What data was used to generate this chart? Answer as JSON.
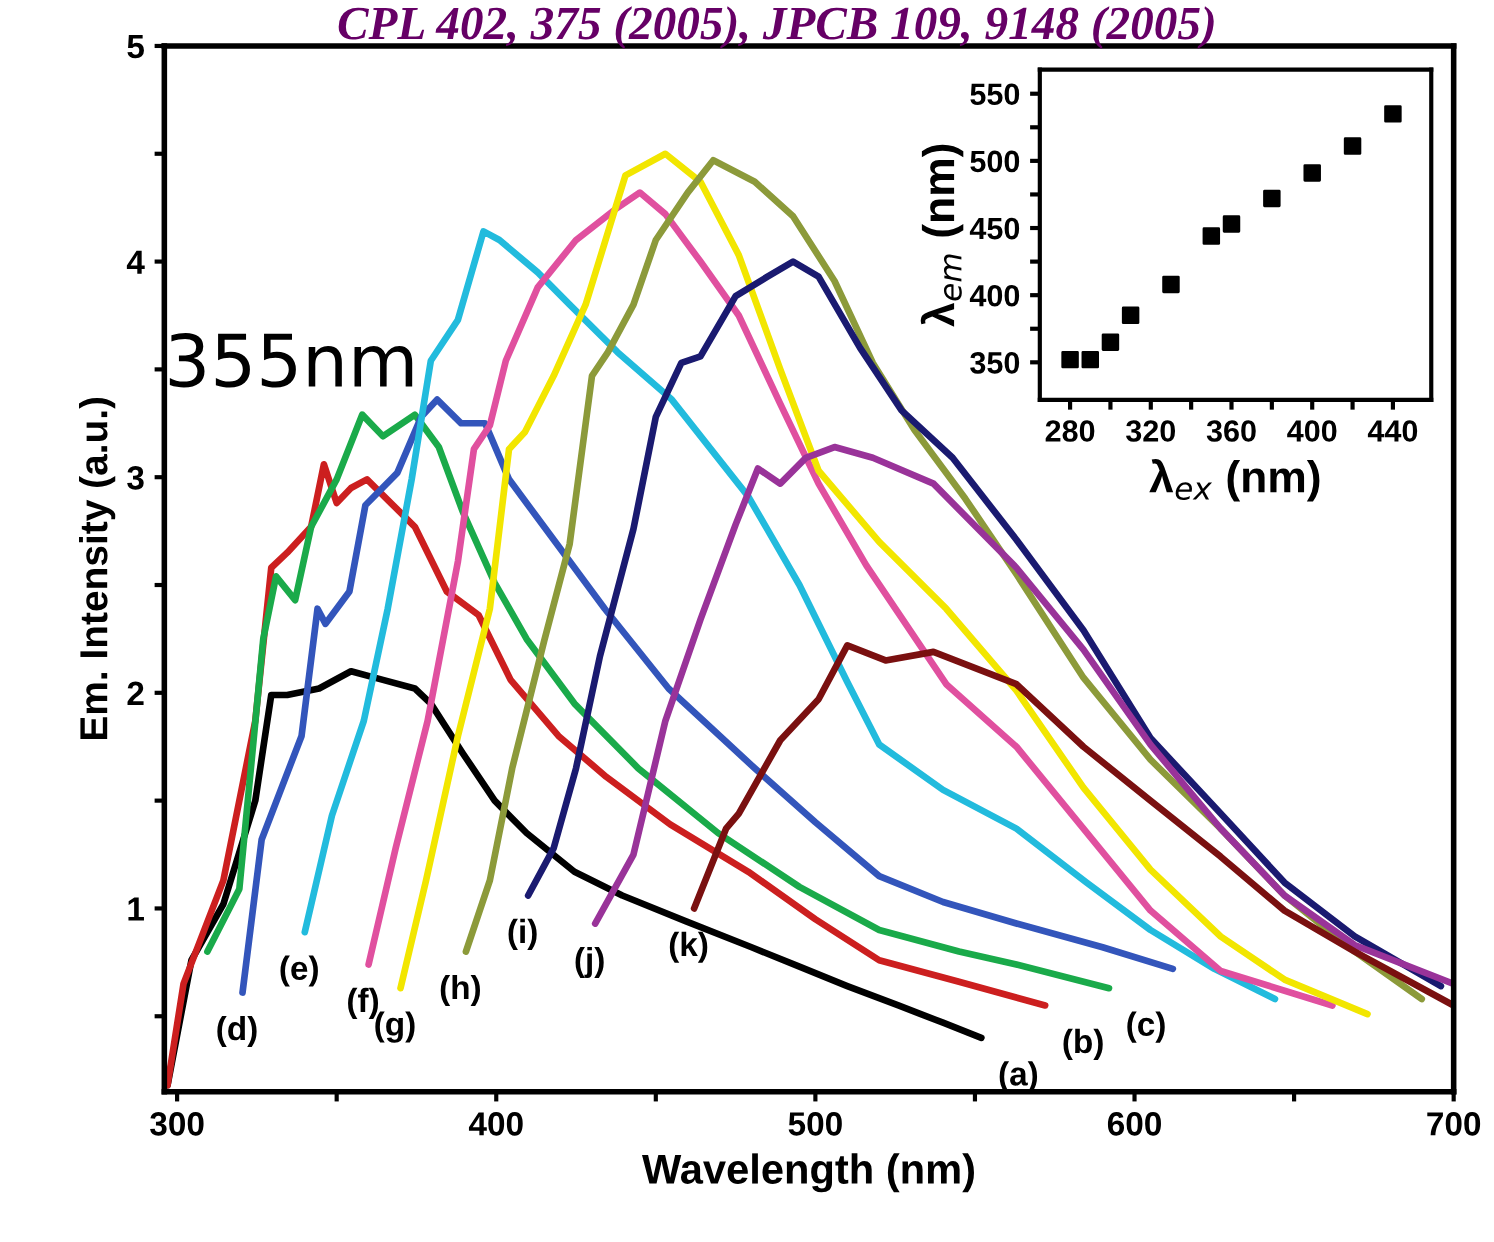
{
  "chart_data": [
    {
      "type": "line",
      "title": "CPL 402, 375 (2005), JPCB 109, 9148 (2005)",
      "xlabel": "Wavelength (nm)",
      "ylabel": "Em. Intensity (a.u.)",
      "annotations": [
        "355nm"
      ],
      "xlim": [
        296,
        700
      ],
      "ylim": [
        0.15,
        5
      ],
      "xticks": [
        300,
        {
          "value": 350,
          "label": null
        },
        400,
        {
          "value": 450,
          "label": null
        },
        500,
        {
          "value": 550,
          "label": null
        },
        600,
        {
          "value": 650,
          "label": null
        },
        700
      ],
      "yticks": [
        {
          "value": 0.5,
          "label": null
        },
        1,
        {
          "value": 1.5,
          "label": null
        },
        2,
        {
          "value": 2.5,
          "label": null
        },
        3,
        {
          "value": 3.5,
          "label": null
        },
        4,
        {
          "value": 4.5,
          "label": null
        },
        5
      ],
      "grid": false,
      "legend": false,
      "marker": "none",
      "line_style": "solid",
      "series": [
        {
          "name": "(a)",
          "color": "#000000",
          "x": [
            297,
            304.5,
            314.5,
            324.5,
            329.5,
            334.5,
            344.5,
            354.5,
            364.5,
            374.5,
            379.5,
            389.5,
            399.5,
            409.5,
            424.5,
            439.5,
            459.5,
            480,
            495,
            510,
            526,
            540,
            552
          ],
          "values": [
            0.18,
            0.76,
            1.02,
            1.5,
            1.99,
            1.99,
            2.02,
            2.1,
            2.06,
            2.02,
            1.95,
            1.72,
            1.5,
            1.35,
            1.17,
            1.06,
            0.94,
            0.82,
            0.73,
            0.64,
            0.55,
            0.47,
            0.4
          ]
        },
        {
          "name": "(b)",
          "color": "#cc1f1f",
          "x": [
            297,
            302,
            314.5,
            324.5,
            329.5,
            334.5,
            342,
            346,
            350,
            354.5,
            359.5,
            367,
            374.5,
            384.5,
            394.5,
            404.5,
            419.5,
            434.5,
            454.5,
            479,
            500,
            520,
            545,
            572
          ],
          "values": [
            0.18,
            0.65,
            1.13,
            1.87,
            2.58,
            2.65,
            2.77,
            3.06,
            2.88,
            2.95,
            2.99,
            2.88,
            2.77,
            2.47,
            2.36,
            2.06,
            1.8,
            1.61,
            1.39,
            1.17,
            0.95,
            0.76,
            0.66,
            0.55
          ]
        },
        {
          "name": "(c)",
          "color": "#1aaa4a",
          "x": [
            309.5,
            319.5,
            327,
            331,
            337,
            342,
            350,
            358,
            364.5,
            374.5,
            382,
            389.5,
            399.5,
            409.5,
            424.5,
            444.5,
            469.5,
            495,
            520,
            545,
            563,
            592
          ],
          "values": [
            0.8,
            1.09,
            2.25,
            2.54,
            2.43,
            2.77,
            2.99,
            3.29,
            3.19,
            3.29,
            3.14,
            2.84,
            2.51,
            2.25,
            1.95,
            1.65,
            1.35,
            1.1,
            0.9,
            0.8,
            0.74,
            0.63
          ]
        },
        {
          "name": "(d)",
          "color": "#3355bb",
          "x": [
            320.5,
            326.5,
            339,
            344,
            346.5,
            354,
            359,
            369,
            376.5,
            381.5,
            389,
            396.5,
            404,
            419,
            434,
            454,
            481,
            500,
            520,
            540,
            563,
            590,
            612
          ],
          "values": [
            0.61,
            1.32,
            1.8,
            2.39,
            2.32,
            2.47,
            2.87,
            3.02,
            3.28,
            3.36,
            3.25,
            3.25,
            2.99,
            2.69,
            2.39,
            2.02,
            1.65,
            1.4,
            1.15,
            1.03,
            0.93,
            0.82,
            0.72
          ]
        },
        {
          "name": "(e)",
          "color": "#22bbdd",
          "x": [
            340,
            348.5,
            358.5,
            366,
            373.5,
            379.5,
            388,
            396,
            401,
            413,
            423,
            438,
            455,
            479,
            495,
            510,
            520,
            540,
            563,
            585,
            605,
            625,
            644
          ],
          "values": [
            0.89,
            1.43,
            1.87,
            2.39,
            2.99,
            3.54,
            3.73,
            4.14,
            4.1,
            3.95,
            3.8,
            3.58,
            3.36,
            2.91,
            2.5,
            2.05,
            1.76,
            1.55,
            1.37,
            1.12,
            0.9,
            0.72,
            0.58
          ]
        },
        {
          "name": "(f)",
          "color": "#e0509f",
          "x": [
            360,
            368.5,
            378.5,
            388,
            393,
            398,
            403,
            413,
            425,
            438,
            445,
            453,
            464,
            476,
            489,
            501,
            516,
            541,
            563,
            584,
            605,
            627,
            662
          ],
          "values": [
            0.74,
            1.28,
            1.87,
            2.61,
            3.13,
            3.24,
            3.54,
            3.88,
            4.1,
            4.25,
            4.32,
            4.22,
            4.0,
            3.75,
            3.34,
            2.97,
            2.59,
            2.04,
            1.75,
            1.37,
            0.99,
            0.71,
            0.55
          ]
        },
        {
          "name": "(g)",
          "color": "#f2e600",
          "x": [
            370,
            378,
            388,
            398,
            404,
            409,
            418,
            428,
            440.5,
            453,
            464,
            476,
            489,
            501,
            520,
            541,
            563,
            584,
            605,
            627,
            647,
            673
          ],
          "values": [
            0.63,
            1.13,
            1.8,
            2.39,
            3.13,
            3.21,
            3.47,
            3.8,
            4.4,
            4.5,
            4.37,
            4.03,
            3.5,
            3.03,
            2.7,
            2.39,
            2.01,
            1.56,
            1.18,
            0.87,
            0.67,
            0.51
          ]
        },
        {
          "name": "(h)",
          "color": "#8c9a3a",
          "x": [
            390.5,
            398,
            405,
            415,
            423,
            430,
            435,
            443,
            450,
            460,
            468,
            481,
            493,
            506,
            518,
            531,
            547,
            563,
            584,
            605,
            627,
            647,
            669,
            690
          ],
          "values": [
            0.8,
            1.13,
            1.65,
            2.24,
            2.69,
            3.47,
            3.58,
            3.8,
            4.1,
            4.32,
            4.47,
            4.37,
            4.21,
            3.91,
            3.53,
            3.22,
            2.9,
            2.55,
            2.07,
            1.69,
            1.37,
            1.06,
            0.8,
            0.58
          ]
        },
        {
          "name": "(i)",
          "color": "#1a1a70",
          "x": [
            410,
            418,
            425,
            432.5,
            443,
            450,
            458,
            464,
            475,
            485,
            493,
            501,
            514,
            527,
            543,
            563,
            584,
            605,
            627,
            647,
            669,
            696
          ],
          "values": [
            1.06,
            1.28,
            1.65,
            2.17,
            2.76,
            3.28,
            3.53,
            3.56,
            3.84,
            3.93,
            4.0,
            3.93,
            3.6,
            3.31,
            3.09,
            2.71,
            2.29,
            1.79,
            1.44,
            1.12,
            0.87,
            0.64
          ]
        },
        {
          "name": "(j)",
          "color": "#993399",
          "x": [
            431,
            443,
            453,
            464,
            475,
            482,
            489,
            497,
            506,
            518,
            537,
            563,
            584,
            605,
            627,
            647,
            669,
            700
          ],
          "values": [
            0.93,
            1.25,
            1.87,
            2.34,
            2.78,
            3.04,
            2.97,
            3.09,
            3.14,
            3.09,
            2.97,
            2.58,
            2.2,
            1.76,
            1.37,
            1.06,
            0.83,
            0.65
          ]
        },
        {
          "name": "(k)",
          "color": "#7a1010",
          "x": [
            462,
            472,
            476,
            489,
            501,
            510,
            522,
            537,
            563,
            584,
            605,
            627,
            647,
            669,
            700
          ],
          "values": [
            1.0,
            1.37,
            1.44,
            1.78,
            1.97,
            2.22,
            2.15,
            2.19,
            2.04,
            1.75,
            1.5,
            1.24,
            0.99,
            0.8,
            0.55
          ]
        }
      ]
    },
    {
      "type": "scatter",
      "xlabel": "λ$_{ex}$ (nm)",
      "ylabel": "λ$_{em}$ (nm)",
      "xlim": [
        265,
        459
      ],
      "ylim": [
        322,
        568
      ],
      "xticks": [
        280,
        {
          "value": 300,
          "label": null
        },
        320,
        {
          "value": 340,
          "label": null
        },
        360,
        {
          "value": 380,
          "label": null
        },
        400,
        {
          "value": 420,
          "label": null
        },
        440
      ],
      "yticks": [
        350,
        {
          "value": 375,
          "label": null
        },
        400,
        {
          "value": 425,
          "label": null
        },
        450,
        {
          "value": 475,
          "label": null
        },
        500,
        {
          "value": 525,
          "label": null
        },
        550
      ],
      "grid": false,
      "legend": false,
      "marker": "square",
      "series": [
        {
          "color": "#000000",
          "x": [
            280,
            290,
            300,
            310,
            330,
            350,
            360,
            380,
            400,
            420,
            440
          ],
          "values": [
            352,
            352,
            365,
            385,
            408,
            444,
            453,
            472,
            491,
            511,
            535
          ]
        }
      ]
    }
  ]
}
